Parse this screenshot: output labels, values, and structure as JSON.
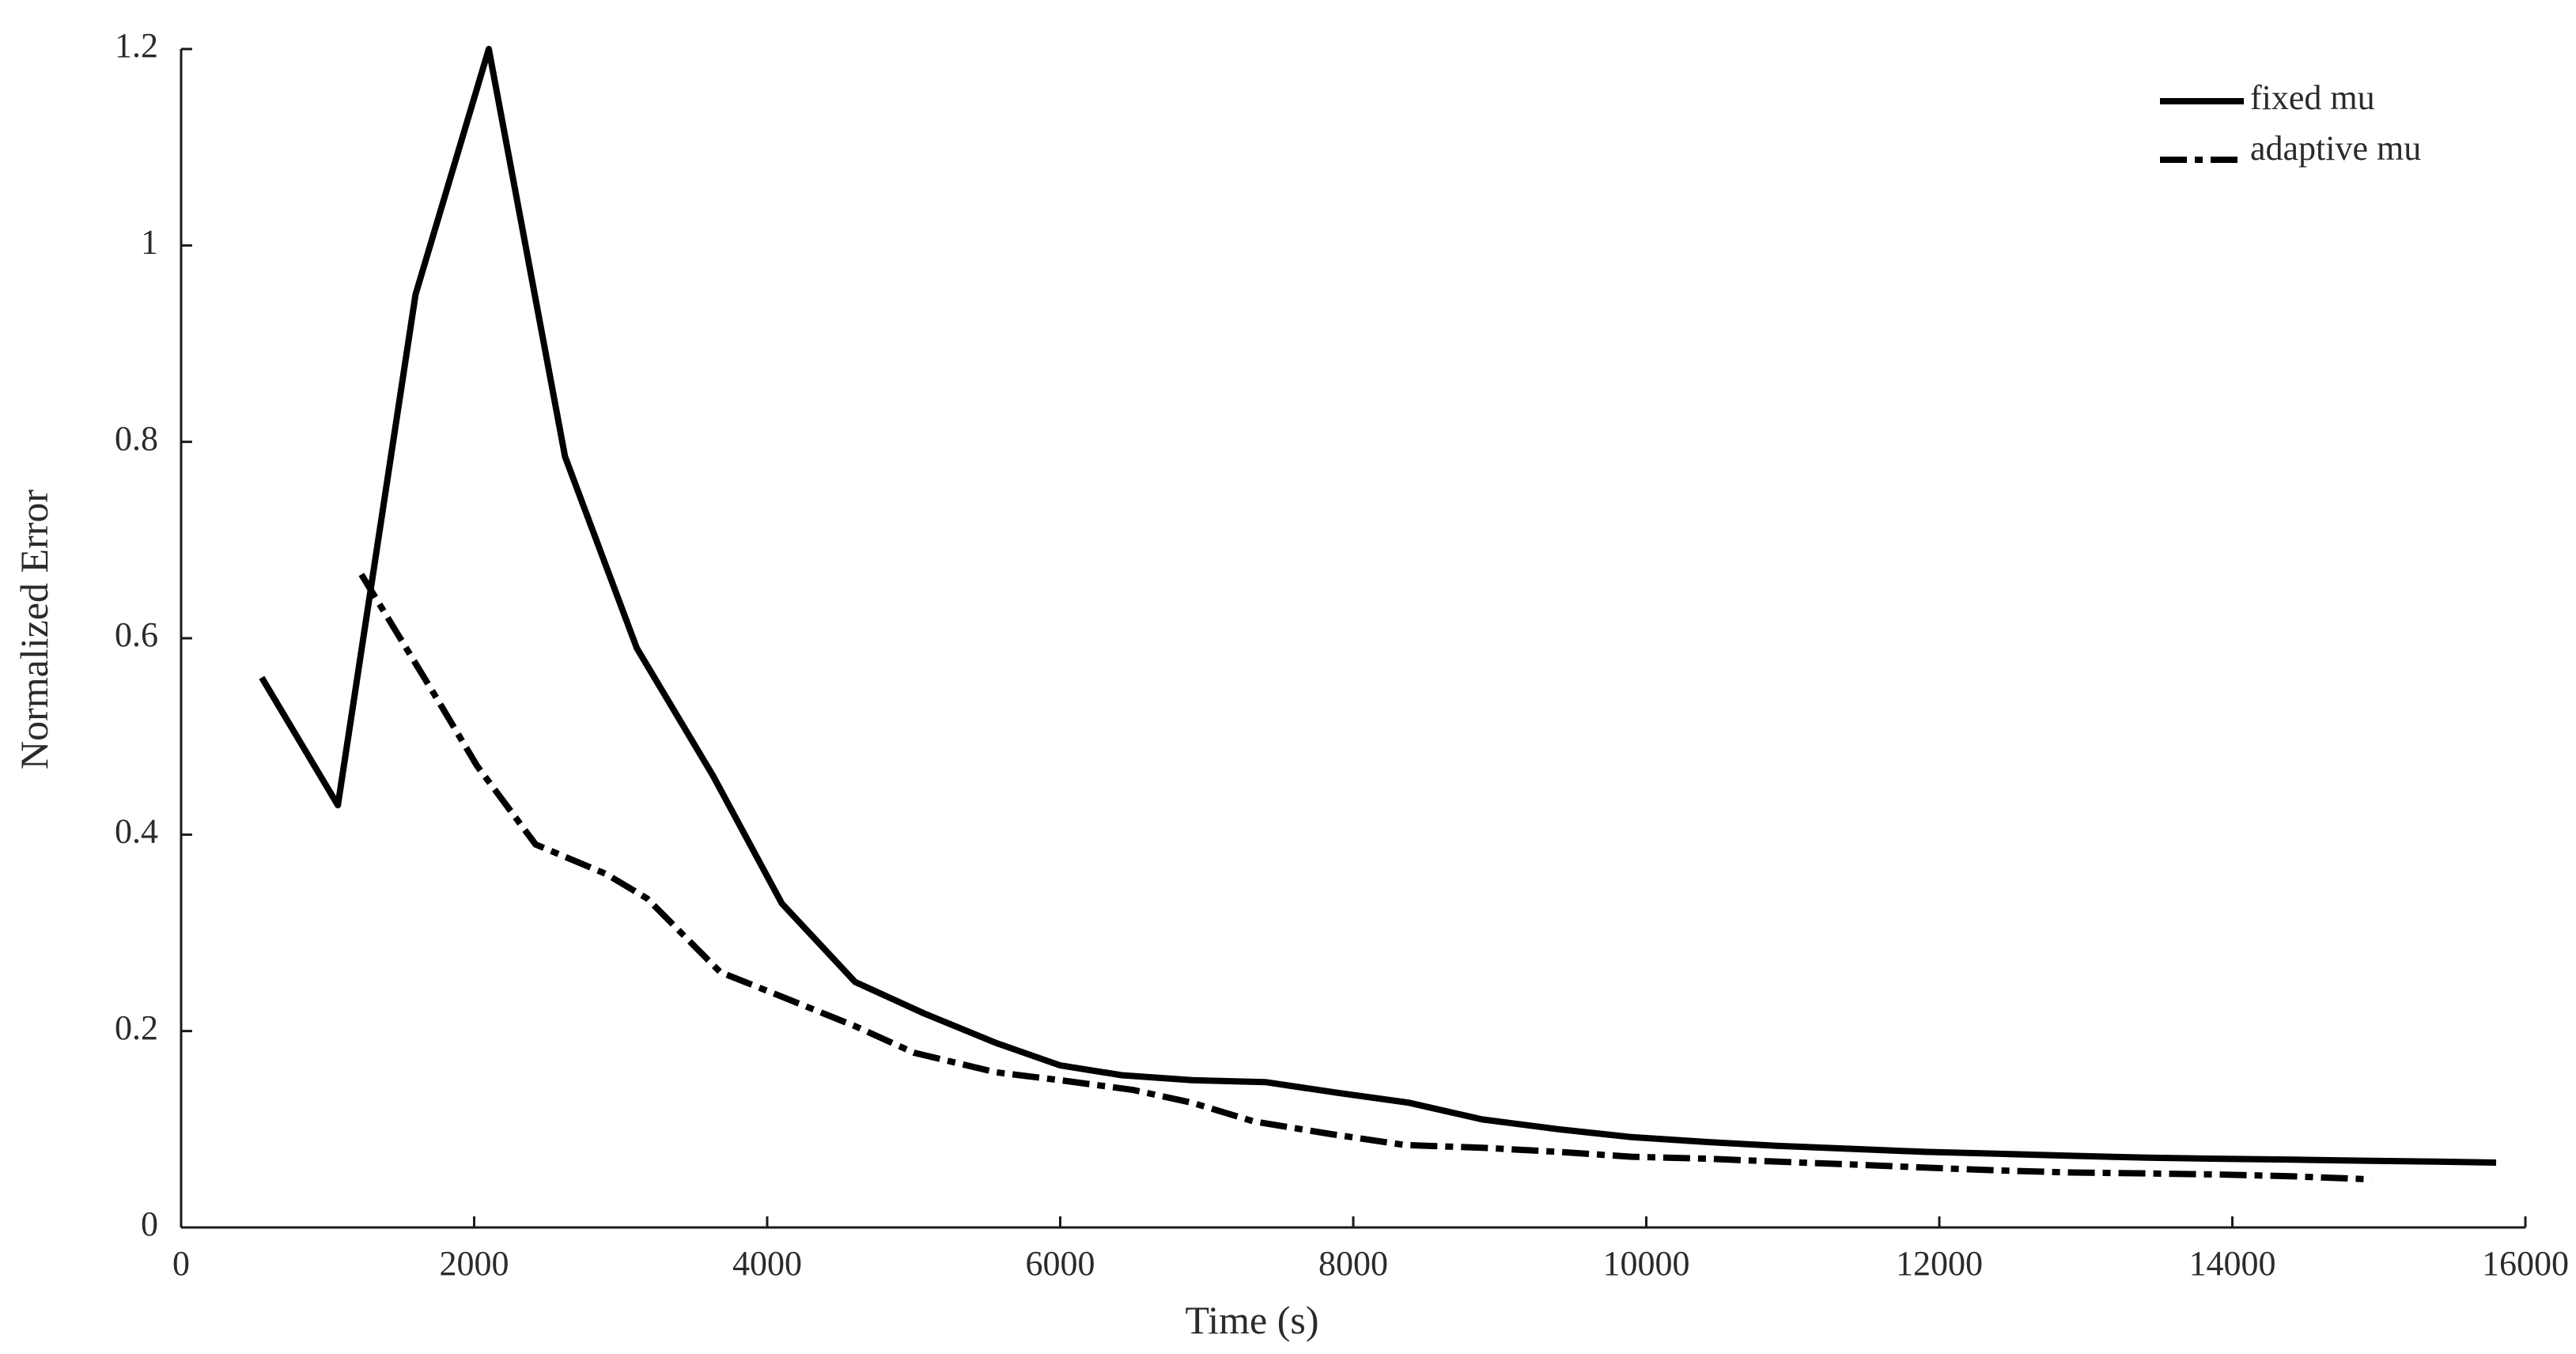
{
  "chart_data": {
    "type": "line",
    "title": "",
    "xlabel": "Time (s)",
    "ylabel": "Normalized Error",
    "xlim": [
      0,
      16000
    ],
    "ylim": [
      0,
      1.2
    ],
    "xticks": [
      0,
      2000,
      4000,
      6000,
      8000,
      10000,
      12000,
      14000,
      16000
    ],
    "yticks": [
      0,
      0.2,
      0.4,
      0.6,
      0.8,
      1,
      1.2
    ],
    "xtick_labels": [
      "0",
      "2000",
      "4000",
      "6000",
      "8000",
      "10000",
      "12000",
      "14000",
      "16000"
    ],
    "ytick_labels": [
      "0",
      "0.2",
      "0.4",
      "0.6",
      "0.8",
      "1",
      "1.2"
    ],
    "grid": false,
    "legend_position": "top-right",
    "series": [
      {
        "name": "fixed mu",
        "style": "solid",
        "color": "#000000",
        "x": [
          550,
          1070,
          1600,
          2100,
          2620,
          3110,
          3630,
          4100,
          4600,
          5070,
          5560,
          6000,
          6420,
          6900,
          7400,
          7900,
          8380,
          8880,
          9400,
          9900,
          10420,
          10900,
          11420,
          11900,
          12420,
          12900,
          13420,
          13900,
          14420,
          14900,
          15400,
          15800
        ],
        "y": [
          0.56,
          0.43,
          0.95,
          1.2,
          0.785,
          0.59,
          0.46,
          0.33,
          0.25,
          0.218,
          0.188,
          0.165,
          0.155,
          0.15,
          0.148,
          0.137,
          0.127,
          0.11,
          0.1,
          0.092,
          0.087,
          0.083,
          0.08,
          0.077,
          0.075,
          0.073,
          0.071,
          0.07,
          0.069,
          0.068,
          0.067,
          0.066
        ]
      },
      {
        "name": "adaptive mu",
        "style": "dashdot",
        "color": "#000000",
        "x": [
          1230,
          1720,
          2020,
          2420,
          2900,
          3180,
          3680,
          4100,
          4600,
          5000,
          5560,
          6000,
          6500,
          6900,
          7320,
          7850,
          8350,
          8900,
          9400,
          9900,
          10420,
          10900,
          11420,
          11900,
          12420,
          12900,
          13420,
          13900,
          14420,
          14950
        ],
        "y": [
          0.665,
          0.545,
          0.47,
          0.39,
          0.36,
          0.335,
          0.26,
          0.235,
          0.205,
          0.178,
          0.158,
          0.15,
          0.14,
          0.127,
          0.108,
          0.095,
          0.084,
          0.081,
          0.077,
          0.072,
          0.07,
          0.067,
          0.064,
          0.061,
          0.058,
          0.056,
          0.055,
          0.054,
          0.052,
          0.049
        ]
      }
    ]
  }
}
